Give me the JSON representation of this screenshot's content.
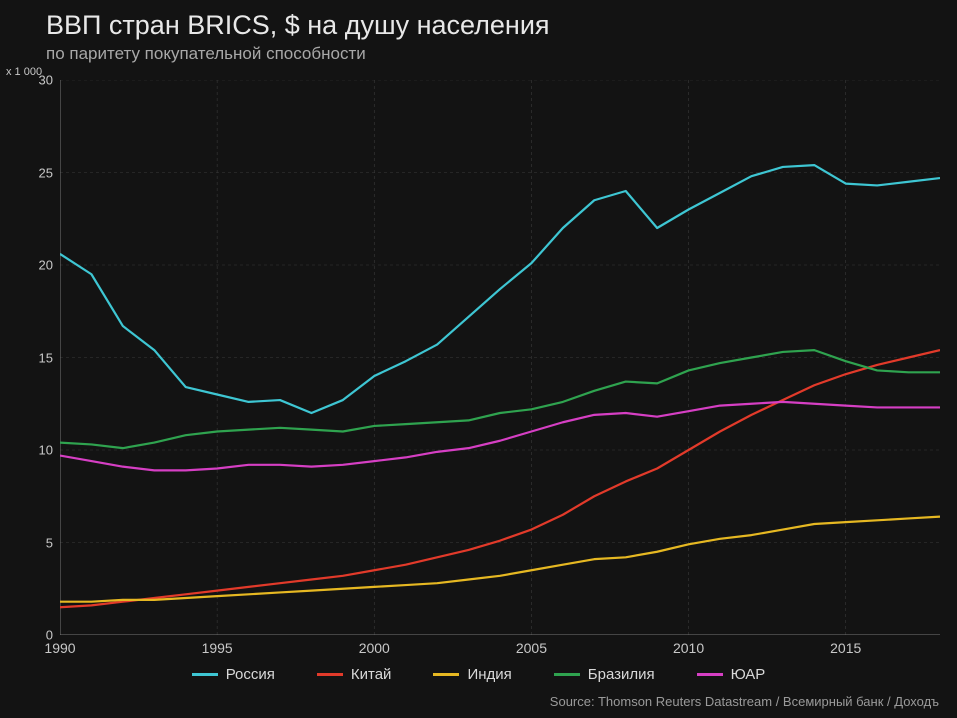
{
  "title": "ВВП стран BRICS, $ на душу населения",
  "subtitle": "по паритету покупательной способности",
  "y_multiplier": "x 1 000",
  "source": "Source: Thomson Reuters Datastream / Всемирный банк / Доходъ",
  "chart": {
    "type": "line",
    "background_color": "#131313",
    "grid_color": "#3a3a3a",
    "axis_color": "#777777",
    "text_color": "#c8c8c8",
    "title_fontsize": 27,
    "subtitle_fontsize": 17,
    "tick_fontsize": 13,
    "legend_fontsize": 15,
    "line_width": 2.2,
    "xlim": [
      1990,
      2018
    ],
    "ylim": [
      0,
      30
    ],
    "x_ticks": [
      1990,
      1995,
      2000,
      2005,
      2010,
      2015
    ],
    "y_ticks": [
      0,
      5,
      10,
      15,
      20,
      25,
      30
    ],
    "years": [
      1990,
      1991,
      1992,
      1993,
      1994,
      1995,
      1996,
      1997,
      1998,
      1999,
      2000,
      2001,
      2002,
      2003,
      2004,
      2005,
      2006,
      2007,
      2008,
      2009,
      2010,
      2011,
      2012,
      2013,
      2014,
      2015,
      2016,
      2017,
      2018
    ],
    "series": [
      {
        "key": "russia",
        "label": "Россия",
        "color": "#3ec6d3",
        "values": [
          20.6,
          19.5,
          16.7,
          15.4,
          13.4,
          13.0,
          12.6,
          12.7,
          12.0,
          12.7,
          14.0,
          14.8,
          15.7,
          17.2,
          18.7,
          20.1,
          22.0,
          23.5,
          24.0,
          22.0,
          23.0,
          23.9,
          24.8,
          25.3,
          25.4,
          24.4,
          24.3,
          24.5,
          24.7
        ]
      },
      {
        "key": "china",
        "label": "Китай",
        "color": "#e23a2a",
        "values": [
          1.5,
          1.6,
          1.8,
          2.0,
          2.2,
          2.4,
          2.6,
          2.8,
          3.0,
          3.2,
          3.5,
          3.8,
          4.2,
          4.6,
          5.1,
          5.7,
          6.5,
          7.5,
          8.3,
          9.0,
          10.0,
          11.0,
          11.9,
          12.7,
          13.5,
          14.1,
          14.6,
          15.0,
          15.4
        ]
      },
      {
        "key": "india",
        "label": "Индия",
        "color": "#e6b822",
        "values": [
          1.8,
          1.8,
          1.9,
          1.9,
          2.0,
          2.1,
          2.2,
          2.3,
          2.4,
          2.5,
          2.6,
          2.7,
          2.8,
          3.0,
          3.2,
          3.5,
          3.8,
          4.1,
          4.2,
          4.5,
          4.9,
          5.2,
          5.4,
          5.7,
          6.0,
          6.1,
          6.2,
          6.3,
          6.4
        ]
      },
      {
        "key": "brazil",
        "label": "Бразилия",
        "color": "#2fa34f",
        "values": [
          10.4,
          10.3,
          10.1,
          10.4,
          10.8,
          11.0,
          11.1,
          11.2,
          11.1,
          11.0,
          11.3,
          11.4,
          11.5,
          11.6,
          12.0,
          12.2,
          12.6,
          13.2,
          13.7,
          13.6,
          14.3,
          14.7,
          15.0,
          15.3,
          15.4,
          14.8,
          14.3,
          14.2,
          14.2
        ]
      },
      {
        "key": "sar",
        "label": "ЮАР",
        "color": "#d63fc4",
        "values": [
          9.7,
          9.4,
          9.1,
          8.9,
          8.9,
          9.0,
          9.2,
          9.2,
          9.1,
          9.2,
          9.4,
          9.6,
          9.9,
          10.1,
          10.5,
          11.0,
          11.5,
          11.9,
          12.0,
          11.8,
          12.1,
          12.4,
          12.5,
          12.6,
          12.5,
          12.4,
          12.3,
          12.3,
          12.3
        ]
      }
    ],
    "legend_position": "bottom"
  }
}
